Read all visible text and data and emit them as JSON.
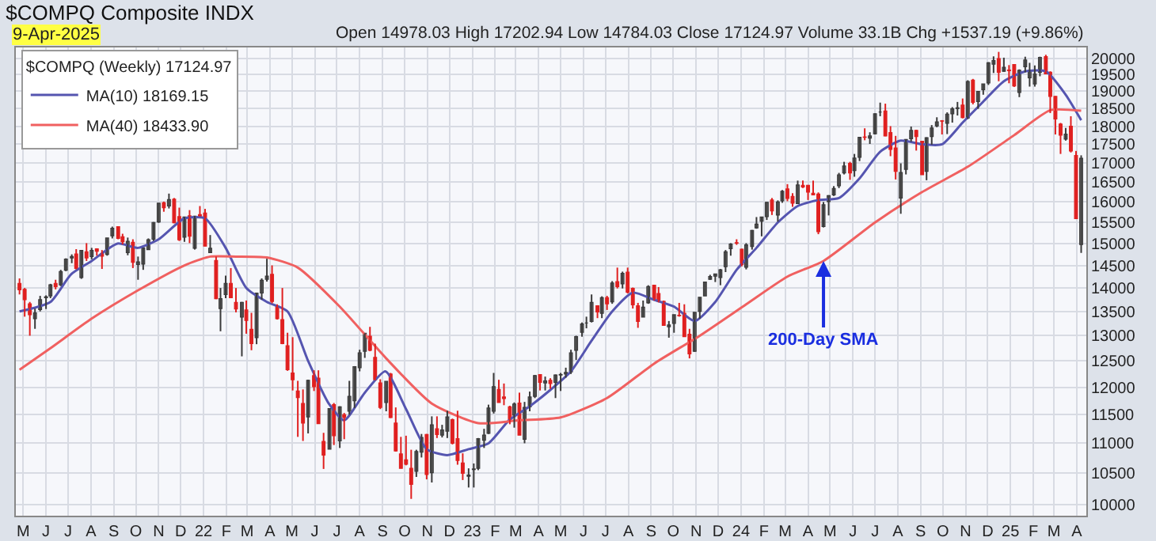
{
  "chart_data": {
    "type": "candlestick",
    "title": "$COMPQ Composite INDX",
    "subtitle": "9-Apr-2025",
    "annotations": [
      "Open 14978.03 High 17202.94 Low 14784.03 Close 17124.97 Volume 33.1B Chg +1537.19 (+9.86%)",
      {
        "text": "200-Day SMA",
        "x": "2024-04-22",
        "y": 14600
      }
    ],
    "log": "y",
    "grid": true,
    "legend": "top left",
    "legend_title": "$COMPQ (Weekly) 17124.97",
    "xlim": [
      "2021-04-21",
      "2025-04-14"
    ],
    "ylim": [
      9830,
      20340
    ],
    "yticks": [
      10000,
      10500,
      11000,
      11500,
      12000,
      12500,
      13000,
      13500,
      14000,
      14500,
      15000,
      15500,
      16000,
      16500,
      17000,
      17500,
      18000,
      18500,
      19000,
      19500,
      20000
    ],
    "xticks": [
      {
        "value": "2021-05-01",
        "label": "M"
      },
      {
        "value": "2021-06-01",
        "label": "J"
      },
      {
        "value": "2021-07-01",
        "label": "J"
      },
      {
        "value": "2021-08-01",
        "label": "A"
      },
      {
        "value": "2021-09-01",
        "label": "S"
      },
      {
        "value": "2021-10-01",
        "label": "O"
      },
      {
        "value": "2021-11-01",
        "label": "N"
      },
      {
        "value": "2021-12-01",
        "label": "D"
      },
      {
        "value": "2022-01-01",
        "label": "22"
      },
      {
        "value": "2022-02-01",
        "label": "F"
      },
      {
        "value": "2022-03-01",
        "label": "M"
      },
      {
        "value": "2022-04-01",
        "label": "A"
      },
      {
        "value": "2022-05-01",
        "label": "M"
      },
      {
        "value": "2022-06-01",
        "label": "J"
      },
      {
        "value": "2022-07-01",
        "label": "J"
      },
      {
        "value": "2022-08-01",
        "label": "A"
      },
      {
        "value": "2022-09-01",
        "label": "S"
      },
      {
        "value": "2022-10-01",
        "label": "O"
      },
      {
        "value": "2022-11-01",
        "label": "N"
      },
      {
        "value": "2022-12-01",
        "label": "D"
      },
      {
        "value": "2023-01-01",
        "label": "23"
      },
      {
        "value": "2023-02-01",
        "label": "F"
      },
      {
        "value": "2023-03-01",
        "label": "M"
      },
      {
        "value": "2023-04-01",
        "label": "A"
      },
      {
        "value": "2023-05-01",
        "label": "M"
      },
      {
        "value": "2023-06-01",
        "label": "J"
      },
      {
        "value": "2023-07-01",
        "label": "J"
      },
      {
        "value": "2023-08-01",
        "label": "A"
      },
      {
        "value": "2023-09-01",
        "label": "S"
      },
      {
        "value": "2023-10-01",
        "label": "O"
      },
      {
        "value": "2023-11-01",
        "label": "N"
      },
      {
        "value": "2023-12-01",
        "label": "D"
      },
      {
        "value": "2024-01-01",
        "label": "24"
      },
      {
        "value": "2024-02-01",
        "label": "F"
      },
      {
        "value": "2024-03-01",
        "label": "M"
      },
      {
        "value": "2024-04-01",
        "label": "A"
      },
      {
        "value": "2024-05-01",
        "label": "M"
      },
      {
        "value": "2024-06-01",
        "label": "J"
      },
      {
        "value": "2024-07-01",
        "label": "J"
      },
      {
        "value": "2024-08-01",
        "label": "A"
      },
      {
        "value": "2024-09-01",
        "label": "S"
      },
      {
        "value": "2024-10-01",
        "label": "O"
      },
      {
        "value": "2024-11-01",
        "label": "N"
      },
      {
        "value": "2024-12-01",
        "label": "D"
      },
      {
        "value": "2025-01-01",
        "label": "25"
      },
      {
        "value": "2025-02-01",
        "label": "F"
      },
      {
        "value": "2025-03-01",
        "label": "M"
      },
      {
        "value": "2025-04-01",
        "label": "A"
      }
    ],
    "x": [
      "2021-04-26",
      "2021-05-03",
      "2021-05-10",
      "2021-05-17",
      "2021-05-24",
      "2021-06-01",
      "2021-06-07",
      "2021-06-14",
      "2021-06-21",
      "2021-06-28",
      "2021-07-06",
      "2021-07-12",
      "2021-07-19",
      "2021-07-26",
      "2021-08-02",
      "2021-08-09",
      "2021-08-16",
      "2021-08-23",
      "2021-08-30",
      "2021-09-07",
      "2021-09-13",
      "2021-09-20",
      "2021-09-27",
      "2021-10-04",
      "2021-10-11",
      "2021-10-18",
      "2021-10-25",
      "2021-11-01",
      "2021-11-08",
      "2021-11-15",
      "2021-11-22",
      "2021-11-29",
      "2021-12-06",
      "2021-12-13",
      "2021-12-20",
      "2021-12-27",
      "2022-01-03",
      "2022-01-10",
      "2022-01-18",
      "2022-01-24",
      "2022-01-31",
      "2022-02-07",
      "2022-02-14",
      "2022-02-22",
      "2022-02-28",
      "2022-03-07",
      "2022-03-14",
      "2022-03-21",
      "2022-03-28",
      "2022-04-04",
      "2022-04-11",
      "2022-04-18",
      "2022-04-25",
      "2022-05-02",
      "2022-05-09",
      "2022-05-16",
      "2022-05-23",
      "2022-05-31",
      "2022-06-06",
      "2022-06-13",
      "2022-06-21",
      "2022-06-27",
      "2022-07-05",
      "2022-07-11",
      "2022-07-18",
      "2022-07-25",
      "2022-08-01",
      "2022-08-08",
      "2022-08-15",
      "2022-08-22",
      "2022-08-29",
      "2022-09-06",
      "2022-09-12",
      "2022-09-19",
      "2022-09-26",
      "2022-10-03",
      "2022-10-10",
      "2022-10-17",
      "2022-10-24",
      "2022-10-31",
      "2022-11-07",
      "2022-11-14",
      "2022-11-21",
      "2022-11-28",
      "2022-12-05",
      "2022-12-12",
      "2022-12-19",
      "2022-12-27",
      "2023-01-03",
      "2023-01-09",
      "2023-01-17",
      "2023-01-23",
      "2023-01-30",
      "2023-02-06",
      "2023-02-13",
      "2023-02-21",
      "2023-02-27",
      "2023-03-06",
      "2023-03-13",
      "2023-03-20",
      "2023-03-27",
      "2023-04-03",
      "2023-04-10",
      "2023-04-17",
      "2023-04-24",
      "2023-05-01",
      "2023-05-08",
      "2023-05-15",
      "2023-05-22",
      "2023-05-30",
      "2023-06-05",
      "2023-06-12",
      "2023-06-20",
      "2023-06-26",
      "2023-07-03",
      "2023-07-10",
      "2023-07-17",
      "2023-07-24",
      "2023-07-31",
      "2023-08-07",
      "2023-08-14",
      "2023-08-21",
      "2023-08-28",
      "2023-09-05",
      "2023-09-11",
      "2023-09-18",
      "2023-09-25",
      "2023-10-02",
      "2023-10-09",
      "2023-10-16",
      "2023-10-23",
      "2023-10-30",
      "2023-11-06",
      "2023-11-13",
      "2023-11-20",
      "2023-11-27",
      "2023-12-04",
      "2023-12-11",
      "2023-12-18",
      "2023-12-26",
      "2024-01-02",
      "2024-01-08",
      "2024-01-16",
      "2024-01-22",
      "2024-01-29",
      "2024-02-05",
      "2024-02-12",
      "2024-02-20",
      "2024-02-26",
      "2024-03-04",
      "2024-03-11",
      "2024-03-18",
      "2024-03-25",
      "2024-04-01",
      "2024-04-08",
      "2024-04-15",
      "2024-04-22",
      "2024-04-29",
      "2024-05-06",
      "2024-05-13",
      "2024-05-20",
      "2024-05-28",
      "2024-06-03",
      "2024-06-10",
      "2024-06-17",
      "2024-06-24",
      "2024-07-01",
      "2024-07-08",
      "2024-07-15",
      "2024-07-22",
      "2024-07-29",
      "2024-08-05",
      "2024-08-12",
      "2024-08-19",
      "2024-08-26",
      "2024-09-03",
      "2024-09-09",
      "2024-09-16",
      "2024-09-23",
      "2024-09-30",
      "2024-10-07",
      "2024-10-14",
      "2024-10-21",
      "2024-10-28",
      "2024-11-04",
      "2024-11-11",
      "2024-11-18",
      "2024-11-25",
      "2024-12-02",
      "2024-12-09",
      "2024-12-16",
      "2024-12-23",
      "2024-12-30",
      "2025-01-06",
      "2025-01-13",
      "2025-01-21",
      "2025-01-27",
      "2025-02-03",
      "2025-02-10",
      "2025-02-18",
      "2025-02-24",
      "2025-03-03",
      "2025-03-10",
      "2025-03-17",
      "2025-03-24",
      "2025-03-31",
      "2025-04-07"
    ],
    "ohlc": [
      [
        14100,
        14210,
        13860,
        13960
      ],
      [
        13970,
        14000,
        13390,
        13750
      ],
      [
        13660,
        13700,
        13000,
        13430
      ],
      [
        13350,
        13560,
        13140,
        13470
      ],
      [
        13540,
        13830,
        13500,
        13750
      ],
      [
        13790,
        13840,
        13550,
        13810
      ],
      [
        13830,
        14090,
        13780,
        14070
      ],
      [
        14100,
        14180,
        13970,
        14030
      ],
      [
        14070,
        14400,
        14040,
        14360
      ],
      [
        14390,
        14660,
        14370,
        14640
      ],
      [
        14670,
        14750,
        14550,
        14700
      ],
      [
        14760,
        14870,
        14410,
        14430
      ],
      [
        14230,
        14850,
        14200,
        14840
      ],
      [
        14810,
        15010,
        14600,
        14670
      ],
      [
        14700,
        14900,
        14640,
        14840
      ],
      [
        14880,
        14890,
        14720,
        14820
      ],
      [
        14770,
        14850,
        14420,
        14710
      ],
      [
        14750,
        15130,
        14720,
        15130
      ],
      [
        15180,
        15400,
        15120,
        15360
      ],
      [
        15400,
        15410,
        15100,
        15120
      ],
      [
        15160,
        15230,
        14980,
        15040
      ],
      [
        14790,
        15140,
        14730,
        15050
      ],
      [
        15030,
        15100,
        14440,
        14570
      ],
      [
        14520,
        14700,
        14180,
        14580
      ],
      [
        14530,
        14900,
        14400,
        14900
      ],
      [
        14860,
        15120,
        14860,
        15090
      ],
      [
        15100,
        15510,
        15060,
        15500
      ],
      [
        15510,
        15970,
        15490,
        15970
      ],
      [
        15980,
        16010,
        15760,
        15860
      ],
      [
        15900,
        16210,
        15840,
        16060
      ],
      [
        16070,
        16100,
        15480,
        15490
      ],
      [
        15640,
        15860,
        15060,
        15090
      ],
      [
        15150,
        15640,
        15040,
        15630
      ],
      [
        15660,
        15800,
        15010,
        15170
      ],
      [
        14890,
        15660,
        14860,
        15650
      ],
      [
        15690,
        15900,
        15640,
        15640
      ],
      [
        15730,
        15830,
        14940,
        14940
      ],
      [
        14790,
        15200,
        14790,
        14890
      ],
      [
        14610,
        14700,
        13760,
        13770
      ],
      [
        13560,
        14000,
        13090,
        13770
      ],
      [
        13860,
        14270,
        13780,
        14100
      ],
      [
        14100,
        14440,
        13790,
        13790
      ],
      [
        13690,
        14000,
        13480,
        13550
      ],
      [
        13380,
        13700,
        12590,
        13690
      ],
      [
        13530,
        13730,
        13040,
        13310
      ],
      [
        13130,
        13470,
        12710,
        12840
      ],
      [
        12960,
        13900,
        12830,
        13890
      ],
      [
        13890,
        14210,
        13750,
        14170
      ],
      [
        14190,
        14650,
        14140,
        14260
      ],
      [
        14300,
        14500,
        13670,
        13710
      ],
      [
        13620,
        13650,
        13330,
        13350
      ],
      [
        13330,
        14000,
        12830,
        12840
      ],
      [
        12800,
        13060,
        12310,
        12330
      ],
      [
        12270,
        12970,
        11940,
        12140
      ],
      [
        11930,
        12120,
        11110,
        11810
      ],
      [
        11700,
        11960,
        11040,
        11350
      ],
      [
        11460,
        12140,
        11170,
        12130
      ],
      [
        12220,
        12320,
        11930,
        12010
      ],
      [
        12170,
        12320,
        11340,
        11340
      ],
      [
        11030,
        11180,
        10570,
        10800
      ],
      [
        10900,
        11610,
        10900,
        11610
      ],
      [
        11680,
        11710,
        10970,
        11130
      ],
      [
        11040,
        11650,
        10920,
        11640
      ],
      [
        11500,
        11530,
        11070,
        11450
      ],
      [
        11560,
        12120,
        11500,
        11830
      ],
      [
        11750,
        12400,
        11620,
        12390
      ],
      [
        12370,
        12720,
        12300,
        12660
      ],
      [
        12690,
        13050,
        12560,
        13050
      ],
      [
        12990,
        13180,
        12690,
        12710
      ],
      [
        12570,
        12840,
        12130,
        12140
      ],
      [
        12080,
        12150,
        11600,
        11630
      ],
      [
        11720,
        12110,
        11560,
        12110
      ],
      [
        12250,
        12270,
        11440,
        11450
      ],
      [
        11350,
        11630,
        10860,
        10870
      ],
      [
        10820,
        11110,
        10580,
        10580
      ],
      [
        10720,
        11130,
        10630,
        10650
      ],
      [
        10580,
        10890,
        10090,
        10320
      ],
      [
        10530,
        10890,
        10440,
        10860
      ],
      [
        10850,
        11160,
        10760,
        11100
      ],
      [
        11150,
        11160,
        10400,
        10480
      ],
      [
        10510,
        11470,
        10350,
        11320
      ],
      [
        11250,
        11470,
        11090,
        11150
      ],
      [
        11140,
        11320,
        11100,
        11230
      ],
      [
        11210,
        11570,
        11090,
        11460
      ],
      [
        11410,
        11430,
        10980,
        11000
      ],
      [
        11080,
        11570,
        10640,
        10710
      ],
      [
        10670,
        10830,
        10390,
        10500
      ],
      [
        10450,
        10580,
        10270,
        10470
      ],
      [
        10560,
        10660,
        10270,
        10570
      ],
      [
        10580,
        11090,
        10550,
        11080
      ],
      [
        11050,
        11250,
        10920,
        11140
      ],
      [
        11170,
        11680,
        11160,
        11620
      ],
      [
        11560,
        12270,
        11520,
        12010
      ],
      [
        11960,
        12140,
        11720,
        11720
      ],
      [
        11820,
        12070,
        11670,
        11790
      ],
      [
        11640,
        11660,
        11330,
        11390
      ],
      [
        11490,
        11720,
        11270,
        11690
      ],
      [
        11710,
        11900,
        11140,
        11140
      ],
      [
        11070,
        11730,
        11000,
        11630
      ],
      [
        11640,
        11920,
        11560,
        11820
      ],
      [
        11830,
        12230,
        11800,
        12220
      ],
      [
        12240,
        12240,
        11940,
        12090
      ],
      [
        12080,
        12200,
        11940,
        12120
      ],
      [
        12130,
        12170,
        11970,
        12070
      ],
      [
        12090,
        12240,
        11800,
        12230
      ],
      [
        12230,
        12270,
        11930,
        12240
      ],
      [
        12250,
        12370,
        12180,
        12280
      ],
      [
        12290,
        12720,
        12250,
        12660
      ],
      [
        12710,
        13000,
        12520,
        12980
      ],
      [
        13070,
        13270,
        12980,
        13240
      ],
      [
        13260,
        13390,
        13150,
        13260
      ],
      [
        13290,
        13860,
        13270,
        13690
      ],
      [
        13620,
        13630,
        13360,
        13490
      ],
      [
        13460,
        13820,
        13360,
        13790
      ],
      [
        13790,
        13830,
        13530,
        13660
      ],
      [
        13700,
        14150,
        13660,
        14110
      ],
      [
        14140,
        14450,
        13990,
        14030
      ],
      [
        14090,
        14360,
        13990,
        14320
      ],
      [
        14350,
        14450,
        13880,
        13910
      ],
      [
        13990,
        14010,
        13560,
        13640
      ],
      [
        13620,
        13680,
        13160,
        13290
      ],
      [
        13380,
        13730,
        13380,
        13590
      ],
      [
        13680,
        14060,
        13660,
        14030
      ],
      [
        14060,
        14070,
        13730,
        13760
      ],
      [
        13880,
        14020,
        13690,
        13710
      ],
      [
        13710,
        13730,
        13210,
        13210
      ],
      [
        13180,
        13300,
        12960,
        13220
      ],
      [
        13250,
        13430,
        13060,
        13430
      ],
      [
        13420,
        13680,
        13390,
        13410
      ],
      [
        13460,
        13650,
        12980,
        12980
      ],
      [
        13030,
        13140,
        12550,
        12640
      ],
      [
        12690,
        13480,
        12680,
        13480
      ],
      [
        13500,
        13800,
        13350,
        13800
      ],
      [
        13830,
        14130,
        13830,
        14130
      ],
      [
        14190,
        14290,
        14180,
        14250
      ],
      [
        14260,
        14310,
        14130,
        14310
      ],
      [
        14230,
        14420,
        14060,
        14400
      ],
      [
        14470,
        14850,
        14350,
        14810
      ],
      [
        14880,
        15010,
        14720,
        14990
      ],
      [
        15020,
        15100,
        14970,
        15010
      ],
      [
        14870,
        14880,
        14480,
        14520
      ],
      [
        14460,
        15010,
        14410,
        14970
      ],
      [
        14930,
        15320,
        14860,
        15310
      ],
      [
        15370,
        15630,
        15350,
        15460
      ],
      [
        15530,
        15630,
        15170,
        15630
      ],
      [
        15640,
        16000,
        15560,
        15990
      ],
      [
        16050,
        16100,
        15680,
        15780
      ],
      [
        15680,
        16040,
        15520,
        16000
      ],
      [
        16030,
        16300,
        15980,
        16270
      ],
      [
        16330,
        16450,
        16020,
        16090
      ],
      [
        16140,
        16220,
        15880,
        15970
      ],
      [
        15960,
        16540,
        15950,
        16430
      ],
      [
        16420,
        16540,
        16350,
        16380
      ],
      [
        16420,
        16430,
        16050,
        16250
      ],
      [
        16220,
        16540,
        16180,
        16180
      ],
      [
        16200,
        16240,
        15220,
        15280
      ],
      [
        15400,
        16000,
        15380,
        15930
      ],
      [
        16010,
        16170,
        15670,
        16160
      ],
      [
        16180,
        16400,
        16150,
        16340
      ],
      [
        16410,
        16740,
        16350,
        16690
      ],
      [
        16740,
        17030,
        16700,
        16920
      ],
      [
        16990,
        17030,
        16560,
        16740
      ],
      [
        16800,
        17240,
        16640,
        17130
      ],
      [
        17150,
        17700,
        17050,
        17690
      ],
      [
        17700,
        17940,
        17610,
        17690
      ],
      [
        17670,
        17830,
        17510,
        17730
      ],
      [
        17790,
        18360,
        17770,
        18350
      ],
      [
        18400,
        18670,
        18280,
        18400
      ],
      [
        18430,
        18640,
        17720,
        17730
      ],
      [
        17820,
        18000,
        17180,
        17360
      ],
      [
        17400,
        17730,
        16570,
        16780
      ],
      [
        16100,
        16990,
        15710,
        16750
      ],
      [
        16830,
        17640,
        16700,
        17630
      ],
      [
        17650,
        17990,
        17570,
        17880
      ],
      [
        17880,
        17900,
        17330,
        17710
      ],
      [
        17580,
        17580,
        16690,
        16690
      ],
      [
        16780,
        17690,
        16550,
        17680
      ],
      [
        17710,
        18030,
        17490,
        17950
      ],
      [
        18010,
        18250,
        17970,
        18120
      ],
      [
        18150,
        18170,
        17770,
        18140
      ],
      [
        18080,
        18390,
        17780,
        18340
      ],
      [
        18350,
        18540,
        18100,
        18490
      ],
      [
        18500,
        18690,
        18300,
        18520
      ],
      [
        18600,
        18790,
        18220,
        18240
      ],
      [
        18230,
        19330,
        18200,
        19290
      ],
      [
        19330,
        19370,
        18620,
        18680
      ],
      [
        18700,
        19010,
        18490,
        19000
      ],
      [
        19050,
        19220,
        18900,
        19220
      ],
      [
        19250,
        19880,
        19190,
        19860
      ],
      [
        19820,
        20060,
        19550,
        19930
      ],
      [
        19990,
        20200,
        19300,
        19570
      ],
      [
        19600,
        20020,
        19590,
        19720
      ],
      [
        19640,
        19790,
        19240,
        19620
      ],
      [
        19810,
        19810,
        19130,
        19160
      ],
      [
        18970,
        19660,
        18830,
        19630
      ],
      [
        19740,
        20050,
        19570,
        19950
      ],
      [
        19400,
        19860,
        19140,
        19630
      ],
      [
        19220,
        19780,
        19140,
        19520
      ],
      [
        19570,
        20050,
        19450,
        20030
      ],
      [
        20050,
        20110,
        19520,
        19520
      ],
      [
        19570,
        19600,
        18370,
        18850
      ],
      [
        18850,
        18860,
        17770,
        18200
      ],
      [
        18060,
        18090,
        17240,
        17750
      ],
      [
        17640,
        17950,
        17600,
        17780
      ],
      [
        18000,
        18280,
        17280,
        17320
      ],
      [
        17200,
        17320,
        15580,
        15590
      ],
      [
        14978.03,
        17202.94,
        14784.03,
        17124.97
      ]
    ],
    "series": [
      {
        "type": "line",
        "name": "MA(10) 18169.15",
        "color": "#5555b0",
        "x": [
          "2021-04-26",
          "2021-06-07",
          "2021-07-05",
          "2021-08-02",
          "2021-09-06",
          "2021-10-04",
          "2021-11-01",
          "2021-12-06",
          "2022-01-03",
          "2022-01-31",
          "2022-02-28",
          "2022-03-28",
          "2022-04-25",
          "2022-05-23",
          "2022-06-20",
          "2022-07-11",
          "2022-08-08",
          "2022-09-05",
          "2022-10-03",
          "2022-10-31",
          "2022-11-28",
          "2022-12-27",
          "2023-01-23",
          "2023-02-20",
          "2023-03-20",
          "2023-04-17",
          "2023-05-15",
          "2023-06-12",
          "2023-07-10",
          "2023-08-07",
          "2023-09-04",
          "2023-10-02",
          "2023-10-30",
          "2023-11-27",
          "2023-12-26",
          "2024-01-22",
          "2024-02-20",
          "2024-03-18",
          "2024-04-15",
          "2024-05-13",
          "2024-06-10",
          "2024-07-08",
          "2024-08-05",
          "2024-09-03",
          "2024-09-30",
          "2024-10-28",
          "2024-11-25",
          "2024-12-23",
          "2025-01-21",
          "2025-02-18",
          "2025-03-17",
          "2025-04-07"
        ],
        "values": [
          13500,
          13700,
          14300,
          14600,
          15000,
          14900,
          15100,
          15600,
          15600,
          14900,
          14000,
          13700,
          13500,
          12500,
          11700,
          11400,
          11900,
          12300,
          11600,
          10900,
          10800,
          10900,
          11000,
          11400,
          11650,
          11950,
          12300,
          12900,
          13500,
          13900,
          13750,
          13600,
          13300,
          13700,
          14400,
          14900,
          15500,
          15900,
          16050,
          16100,
          16600,
          17300,
          17600,
          17500,
          17500,
          18100,
          18700,
          19300,
          19600,
          19600,
          18900,
          18169.15
        ]
      },
      {
        "type": "line",
        "name": "MA(40) 18433.90",
        "color": "#f06060",
        "x": [
          "2021-04-26",
          "2021-06-07",
          "2021-08-02",
          "2021-10-04",
          "2021-12-06",
          "2022-01-10",
          "2022-02-14",
          "2022-03-28",
          "2022-05-09",
          "2022-07-05",
          "2022-09-06",
          "2022-11-07",
          "2023-01-09",
          "2023-03-06",
          "2023-05-01",
          "2023-07-03",
          "2023-09-05",
          "2023-11-06",
          "2024-01-08",
          "2024-03-04",
          "2024-04-22",
          "2024-07-01",
          "2024-09-03",
          "2024-11-04",
          "2025-01-06",
          "2025-02-24",
          "2025-04-07"
        ],
        "values": [
          12330,
          12750,
          13350,
          13950,
          14500,
          14700,
          14700,
          14680,
          14450,
          13600,
          12550,
          11700,
          11350,
          11400,
          11450,
          11800,
          12450,
          13000,
          13650,
          14250,
          14600,
          15500,
          16250,
          16900,
          17750,
          18450,
          18433.9
        ]
      }
    ]
  }
}
